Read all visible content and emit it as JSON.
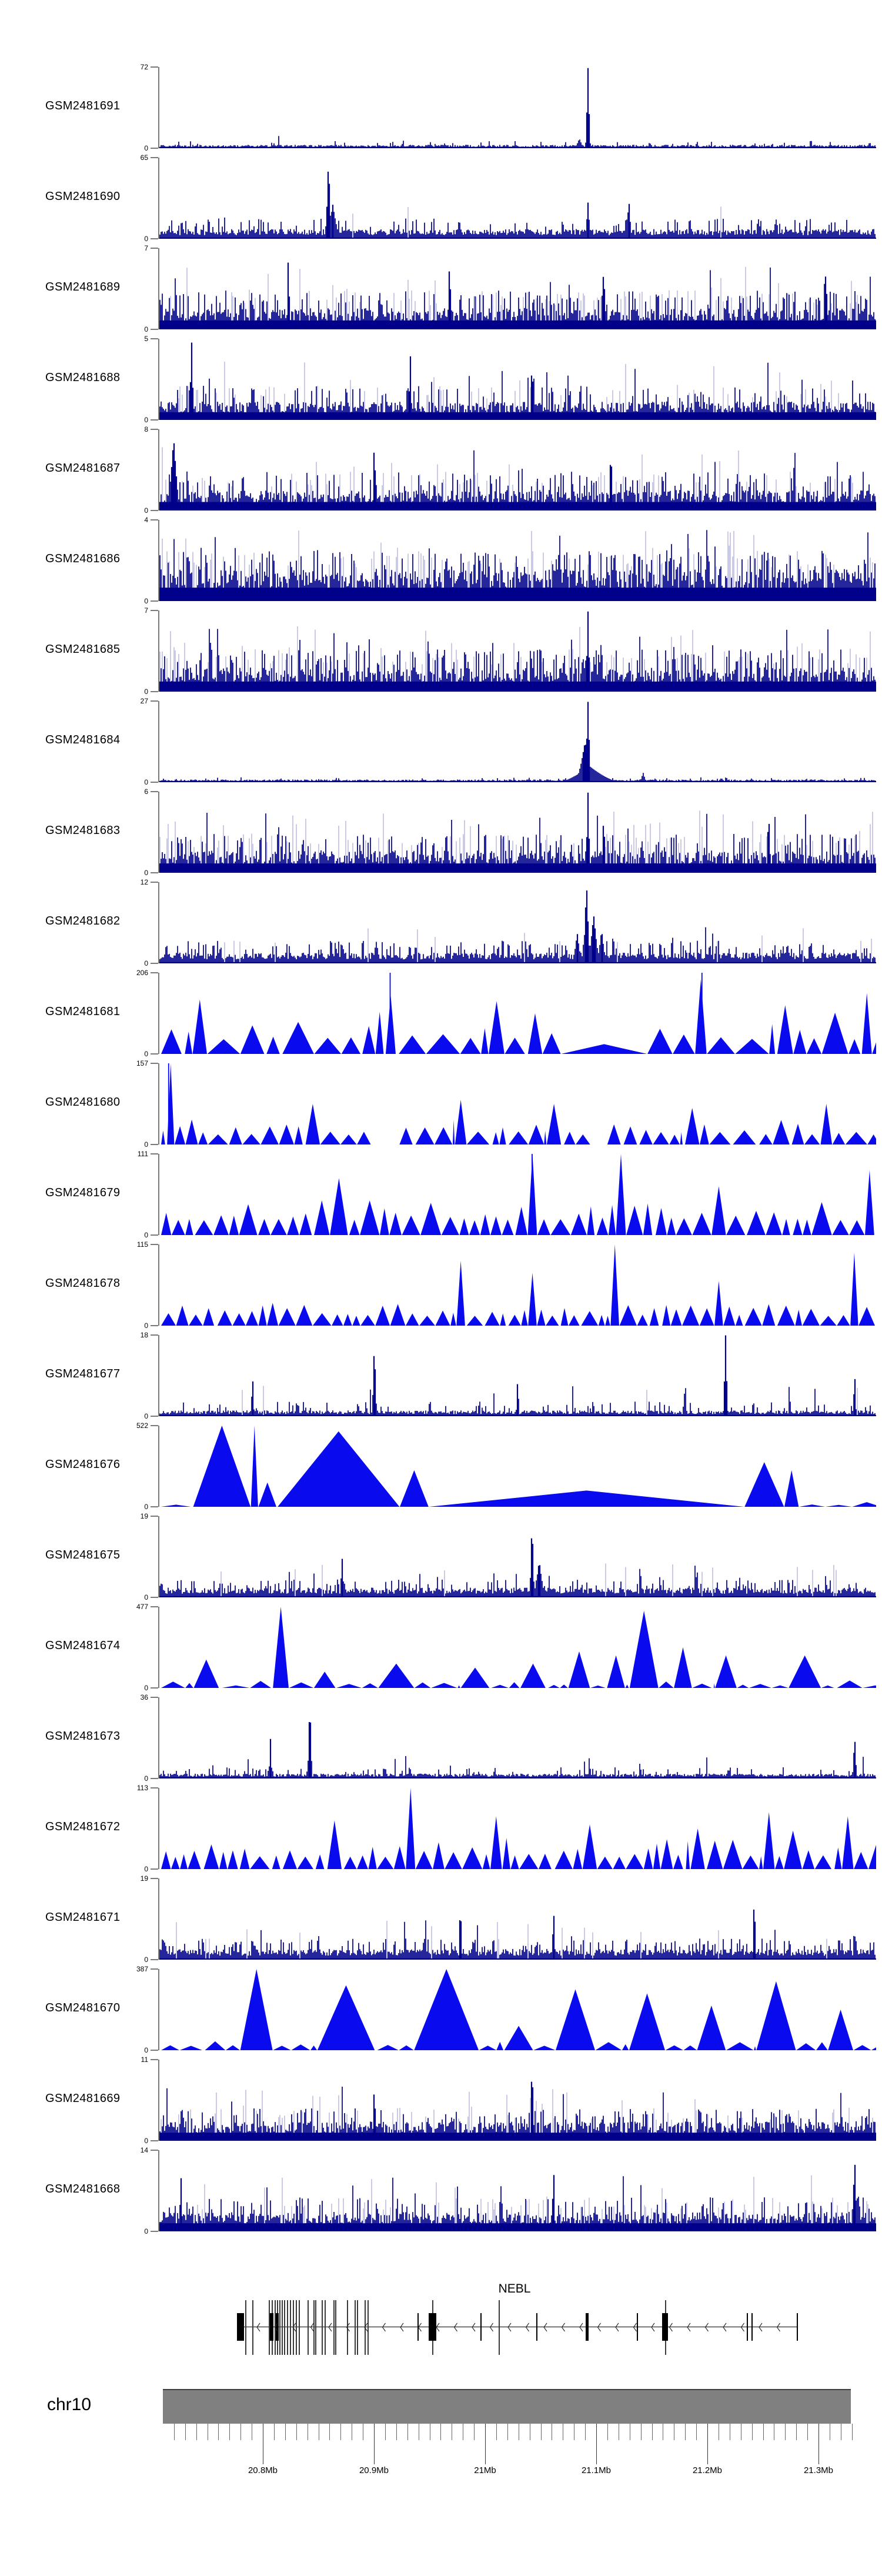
{
  "page": {
    "background": "#ffffff"
  },
  "colors": {
    "bar": "#00008B",
    "peak": "#0A0AEE",
    "axis": "#7a7a7a",
    "gene": "#000000",
    "gene_tall_exon": "#3a3a3a",
    "arrow": "#222222",
    "chromosome_bar": "#808080",
    "chromosome_bar_edge": "#3f3f3f",
    "text": "#000000"
  },
  "gene_panel": {
    "gene_name": "NEBL",
    "chromosome_label": "chr10",
    "strand": "-"
  },
  "ruler": {
    "major_tick_labels": [
      "20.8Mb",
      "20.9Mb",
      "21Mb",
      "21.1Mb",
      "21.2Mb",
      "21.3Mb"
    ]
  },
  "chart_data": {
    "type": "area",
    "subtype": "genome-browser-coverage-tracks",
    "title": "",
    "region": {
      "chromosome": "chr10",
      "start_mb": 20.71,
      "end_mb": 21.35,
      "major_ticks_mb": [
        20.8,
        20.9,
        21.0,
        21.1,
        21.2,
        21.3
      ],
      "minor_tick_step_mb": 0.01
    },
    "gene": {
      "name": "NEBL",
      "strand": "-",
      "line_x": [
        409,
        1356
      ],
      "tall_exons_x": [
        417,
        429,
        457,
        462,
        467,
        471,
        475,
        479,
        483,
        488,
        493,
        498,
        503,
        508,
        523,
        533,
        536,
        547,
        552,
        567,
        570,
        590,
        603,
        607,
        620,
        625,
        735,
        848,
        1131
      ],
      "med_exons_x": [
        710,
        817,
        912,
        1083,
        1270,
        1278,
        1355
      ],
      "thick_exons": [
        [
          403,
          12
        ],
        [
          459,
          6
        ],
        [
          469,
          5
        ],
        [
          729,
          13
        ],
        [
          996,
          5
        ],
        [
          1126,
          10
        ]
      ]
    },
    "tracks": [
      {
        "label": "GSM2481691",
        "ymax": 72,
        "ymin": 0,
        "style": "bars",
        "base": 0.035,
        "mid": 0.09,
        "pmid": 0.06,
        "tall": 0.16,
        "ptall": 0.004,
        "peaks": [
          [
            0.598,
            1,
            0.004
          ],
          [
            0.586,
            0.12,
            0.008
          ],
          [
            0.34,
            0.12,
            0.003
          ],
          [
            0.75,
            0.1,
            0.003
          ]
        ]
      },
      {
        "label": "GSM2481690",
        "ymax": 65,
        "ymin": 0,
        "style": "bars",
        "base": 0.1,
        "mid": 0.25,
        "pmid": 0.15,
        "tall": 0.4,
        "ptall": 0.015,
        "peaks": [
          [
            0.236,
            1,
            0.005
          ],
          [
            0.242,
            0.42,
            0.012
          ],
          [
            0.598,
            0.45,
            0.005
          ],
          [
            0.655,
            0.5,
            0.005
          ],
          [
            0.74,
            0.32,
            0.004
          ],
          [
            0.86,
            0.3,
            0.004
          ]
        ]
      },
      {
        "label": "GSM2481689",
        "ymax": 7,
        "ymin": 0,
        "style": "bars",
        "base": 0.22,
        "mid": 0.48,
        "pmid": 0.28,
        "tall": 0.78,
        "ptall": 0.05,
        "peaks": [
          [
            0.18,
            1,
            0.003
          ],
          [
            0.405,
            1,
            0.003
          ],
          [
            0.62,
            0.95,
            0.003
          ],
          [
            0.93,
            0.9,
            0.003
          ]
        ]
      },
      {
        "label": "GSM2481688",
        "ymax": 5,
        "ymin": 0,
        "style": "bars",
        "base": 0.19,
        "mid": 0.42,
        "pmid": 0.22,
        "tall": 0.72,
        "ptall": 0.04,
        "peaks": [
          [
            0.045,
            1,
            0.004
          ],
          [
            0.35,
            0.92,
            0.003
          ],
          [
            0.52,
            0.85,
            0.003
          ]
        ]
      },
      {
        "label": "GSM2481687",
        "ymax": 8,
        "ymin": 0,
        "style": "bars",
        "base": 0.21,
        "mid": 0.48,
        "pmid": 0.26,
        "tall": 0.78,
        "ptall": 0.05,
        "peaks": [
          [
            0.02,
            0.9,
            0.01
          ],
          [
            0.3,
            1,
            0.003
          ],
          [
            0.63,
            0.92,
            0.003
          ]
        ]
      },
      {
        "label": "GSM2481686",
        "ymax": 4,
        "ymin": 0,
        "style": "bars",
        "base": 0.33,
        "mid": 0.62,
        "pmid": 0.33,
        "tall": 0.88,
        "ptall": 0.08,
        "peaks": []
      },
      {
        "label": "GSM2481685",
        "ymax": 7,
        "ymin": 0,
        "style": "bars",
        "base": 0.25,
        "mid": 0.52,
        "pmid": 0.3,
        "tall": 0.82,
        "ptall": 0.06,
        "peaks": [
          [
            0.598,
            1,
            0.004
          ]
        ]
      },
      {
        "label": "GSM2481684",
        "ymax": 27,
        "ymin": 0,
        "style": "bars",
        "base": 0.028,
        "mid": 0.06,
        "pmid": 0.05,
        "tall": 0.09,
        "ptall": 0.003,
        "peaks": [
          [
            0.598,
            1,
            0.005
          ],
          [
            0.594,
            0.5,
            0.015
          ],
          [
            0.6,
            0.2,
            0.045
          ],
          [
            0.675,
            0.12,
            0.006
          ]
        ]
      },
      {
        "label": "GSM2481683",
        "ymax": 6,
        "ymin": 0,
        "style": "bars",
        "base": 0.23,
        "mid": 0.48,
        "pmid": 0.28,
        "tall": 0.78,
        "ptall": 0.05,
        "peaks": [
          [
            0.598,
            1,
            0.004
          ],
          [
            0.62,
            0.85,
            0.003
          ],
          [
            0.85,
            0.92,
            0.003
          ]
        ]
      },
      {
        "label": "GSM2481682",
        "ymax": 12,
        "ymin": 0,
        "style": "bars",
        "base": 0.11,
        "mid": 0.28,
        "pmid": 0.2,
        "tall": 0.45,
        "ptall": 0.025,
        "peaks": [
          [
            0.596,
            1,
            0.006
          ],
          [
            0.606,
            0.6,
            0.01
          ],
          [
            0.617,
            0.42,
            0.008
          ],
          [
            0.583,
            0.38,
            0.008
          ],
          [
            0.25,
            0.3,
            0.003
          ]
        ]
      },
      {
        "label": "GSM2481681",
        "ymax": 206,
        "ymin": 0,
        "style": "peaks",
        "wmin": 0.014,
        "wmax": 0.05,
        "hmin": 0.18,
        "hmax": 0.6,
        "peaks": [
          [
            0.056,
            0.67,
            0.02
          ],
          [
            0.32,
            0.72,
            0.014
          ],
          [
            0.47,
            0.65,
            0.022
          ],
          [
            0.52,
            0.5,
            0.02
          ],
          [
            0.62,
            0.12,
            0.12
          ],
          [
            0.755,
            0.92,
            0.016
          ],
          [
            0.87,
            0.6,
            0.022
          ],
          [
            0.985,
            0.75,
            0.014
          ]
        ],
        "spikes": [
          [
            0.322,
            1
          ],
          [
            0.757,
            1
          ]
        ]
      },
      {
        "label": "GSM2481680",
        "ymax": 157,
        "ymin": 0,
        "style": "peaks",
        "wmin": 0.008,
        "wmax": 0.032,
        "hmin": 0.12,
        "hmax": 0.42,
        "peaks": [
          [
            0.013,
            1,
            0.01
          ],
          [
            0.21,
            0.5,
            0.02
          ],
          [
            0.42,
            0.55,
            0.016
          ],
          [
            0.55,
            0.5,
            0.02
          ],
          [
            0.74,
            0.45,
            0.02
          ],
          [
            0.93,
            0.5,
            0.016
          ]
        ],
        "spikes": [
          [
            0.013,
            1
          ]
        ],
        "gaps": [
          [
            0.295,
            0.335
          ],
          [
            0.6,
            0.625
          ]
        ]
      },
      {
        "label": "GSM2481679",
        "ymax": 111,
        "ymin": 0,
        "style": "peaks",
        "wmin": 0.01,
        "wmax": 0.03,
        "hmin": 0.18,
        "hmax": 0.55,
        "peaks": [
          [
            0.25,
            0.7,
            0.025
          ],
          [
            0.52,
            1,
            0.013
          ],
          [
            0.635,
            1,
            0.014
          ],
          [
            0.78,
            0.6,
            0.02
          ],
          [
            0.97,
            0.8,
            0.013
          ]
        ],
        "spikes": [
          [
            0.52,
            1
          ]
        ]
      },
      {
        "label": "GSM2481678",
        "ymax": 115,
        "ymin": 0,
        "style": "peaks",
        "wmin": 0.008,
        "wmax": 0.026,
        "hmin": 0.12,
        "hmax": 0.4,
        "peaks": [
          [
            0.42,
            0.8,
            0.012
          ],
          [
            0.52,
            0.65,
            0.012
          ],
          [
            0.635,
            1,
            0.012
          ],
          [
            0.78,
            0.55,
            0.012
          ],
          [
            0.97,
            0.9,
            0.011
          ]
        ]
      },
      {
        "label": "GSM2481677",
        "ymax": 18,
        "ymin": 0,
        "style": "bars",
        "base": 0.06,
        "mid": 0.18,
        "pmid": 0.1,
        "tall": 0.4,
        "ptall": 0.02,
        "peaks": [
          [
            0.13,
            0.55,
            0.003
          ],
          [
            0.3,
            0.95,
            0.004
          ],
          [
            0.5,
            0.5,
            0.003
          ],
          [
            0.79,
            1,
            0.004
          ],
          [
            0.97,
            0.6,
            0.003
          ]
        ]
      },
      {
        "label": "GSM2481676",
        "ymax": 522,
        "ymin": 0,
        "style": "peaks",
        "wmin": 0.02,
        "wmax": 0.05,
        "hmin": 0.02,
        "hmax": 0.08,
        "peaks": [
          [
            0.085,
            1,
            0.08
          ],
          [
            0.118,
            1,
            0.01
          ],
          [
            0.145,
            0.3,
            0.025
          ],
          [
            0.23,
            0.93,
            0.17
          ],
          [
            0.32,
            0.45,
            0.04
          ],
          [
            0.56,
            0.2,
            0.44
          ],
          [
            0.79,
            0.55,
            0.055
          ],
          [
            0.85,
            0.45,
            0.02
          ]
        ]
      },
      {
        "label": "GSM2481675",
        "ymax": 19,
        "ymin": 0,
        "style": "bars",
        "base": 0.1,
        "mid": 0.22,
        "pmid": 0.16,
        "tall": 0.42,
        "ptall": 0.02,
        "peaks": [
          [
            0.255,
            0.5,
            0.004
          ],
          [
            0.52,
            1,
            0.004
          ],
          [
            0.53,
            0.45,
            0.01
          ],
          [
            0.75,
            0.4,
            0.004
          ]
        ]
      },
      {
        "label": "GSM2481674",
        "ymax": 477,
        "ymin": 0,
        "style": "peaks",
        "wmin": 0.015,
        "wmax": 0.04,
        "hmin": 0.03,
        "hmax": 0.12,
        "peaks": [
          [
            0.065,
            0.35,
            0.035
          ],
          [
            0.17,
            1,
            0.022
          ],
          [
            0.23,
            0.2,
            0.03
          ],
          [
            0.33,
            0.3,
            0.05
          ],
          [
            0.44,
            0.25,
            0.04
          ],
          [
            0.52,
            0.3,
            0.035
          ],
          [
            0.585,
            0.45,
            0.03
          ],
          [
            0.635,
            0.4,
            0.025
          ],
          [
            0.675,
            0.95,
            0.04
          ],
          [
            0.73,
            0.5,
            0.025
          ],
          [
            0.79,
            0.4,
            0.03
          ],
          [
            0.9,
            0.4,
            0.045
          ]
        ]
      },
      {
        "label": "GSM2481673",
        "ymax": 36,
        "ymin": 0,
        "style": "bars",
        "base": 0.05,
        "mid": 0.14,
        "pmid": 0.08,
        "tall": 0.28,
        "ptall": 0.012,
        "peaks": [
          [
            0.155,
            0.5,
            0.003
          ],
          [
            0.21,
            1,
            0.004
          ],
          [
            0.6,
            0.3,
            0.003
          ],
          [
            0.97,
            0.55,
            0.004
          ]
        ]
      },
      {
        "label": "GSM2481672",
        "ymax": 113,
        "ymin": 0,
        "style": "peaks",
        "wmin": 0.01,
        "wmax": 0.028,
        "hmin": 0.15,
        "hmax": 0.5,
        "peaks": [
          [
            0.24,
            0.6,
            0.02
          ],
          [
            0.35,
            1,
            0.013
          ],
          [
            0.47,
            0.65,
            0.016
          ],
          [
            0.6,
            0.55,
            0.02
          ],
          [
            0.75,
            0.5,
            0.02
          ],
          [
            0.85,
            0.7,
            0.016
          ],
          [
            0.96,
            0.65,
            0.016
          ]
        ]
      },
      {
        "label": "GSM2481671",
        "ymax": 19,
        "ymin": 0,
        "style": "bars",
        "base": 0.11,
        "mid": 0.26,
        "pmid": 0.2,
        "tall": 0.5,
        "ptall": 0.03,
        "peaks": [
          [
            0.42,
            0.8,
            0.003
          ],
          [
            0.55,
            0.7,
            0.003
          ],
          [
            0.83,
            0.9,
            0.003
          ]
        ]
      },
      {
        "label": "GSM2481670",
        "ymax": 387,
        "ymin": 0,
        "style": "peaks",
        "wmin": 0.02,
        "wmax": 0.04,
        "hmin": 0.05,
        "hmax": 0.15,
        "peaks": [
          [
            0.135,
            1,
            0.045
          ],
          [
            0.26,
            0.8,
            0.08
          ],
          [
            0.4,
            1,
            0.09
          ],
          [
            0.5,
            0.3,
            0.04
          ],
          [
            0.58,
            0.75,
            0.055
          ],
          [
            0.68,
            0.7,
            0.05
          ],
          [
            0.77,
            0.55,
            0.04
          ],
          [
            0.86,
            0.85,
            0.055
          ],
          [
            0.95,
            0.5,
            0.035
          ]
        ]
      },
      {
        "label": "GSM2481669",
        "ymax": 11,
        "ymin": 0,
        "style": "bars",
        "base": 0.2,
        "mid": 0.4,
        "pmid": 0.24,
        "tall": 0.68,
        "ptall": 0.04,
        "peaks": [
          [
            0.52,
            1,
            0.004
          ],
          [
            0.3,
            0.8,
            0.003
          ]
        ]
      },
      {
        "label": "GSM2481668",
        "ymax": 14,
        "ymin": 0,
        "style": "bars",
        "base": 0.2,
        "mid": 0.42,
        "pmid": 0.25,
        "tall": 0.7,
        "ptall": 0.04,
        "peaks": [
          [
            0.03,
            0.8,
            0.003
          ],
          [
            0.55,
            0.9,
            0.003
          ],
          [
            0.97,
            1,
            0.004
          ]
        ]
      }
    ]
  }
}
